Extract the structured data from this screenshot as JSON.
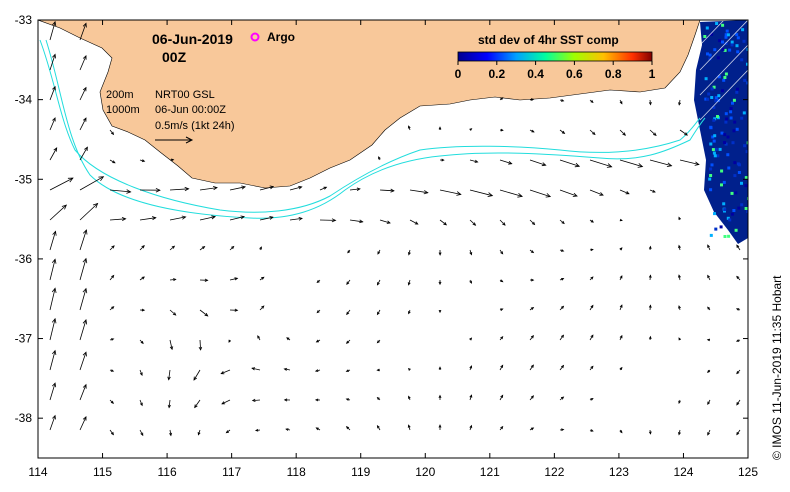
{
  "title": {
    "date": "06-Jun-2019",
    "hour": "00Z"
  },
  "legend": {
    "argo_label": "Argo",
    "argo_color": "#ff00ff",
    "isobath_200": "200m",
    "isobath_1000": "1000m",
    "product": "NRT00 GSL",
    "product_time": "06-Jun 00:00Z",
    "scale_label": "0.5m/s (1kt 24h)"
  },
  "colorbar": {
    "title": "std dev of 4hr SST comp",
    "ticks": [
      "0",
      "0.2",
      "0.4",
      "0.6",
      "0.8",
      "1"
    ],
    "range": [
      0,
      1
    ]
  },
  "axes": {
    "lon_ticks": [
      "114",
      "115",
      "116",
      "117",
      "118",
      "119",
      "120",
      "121",
      "122",
      "123",
      "124",
      "125"
    ],
    "lat_ticks": [
      "-33",
      "-34",
      "-35",
      "-36",
      "-37",
      "-38"
    ],
    "lon_range": [
      114,
      125
    ],
    "lat_range": [
      -38.5,
      -33
    ]
  },
  "credit": "© IMOS 11-Jun-2019 11:35 Hobart",
  "colors": {
    "land": "#f8c89a",
    "isobath": "#22dddd",
    "vector": "#000000",
    "sst_dark": "#00208c"
  }
}
